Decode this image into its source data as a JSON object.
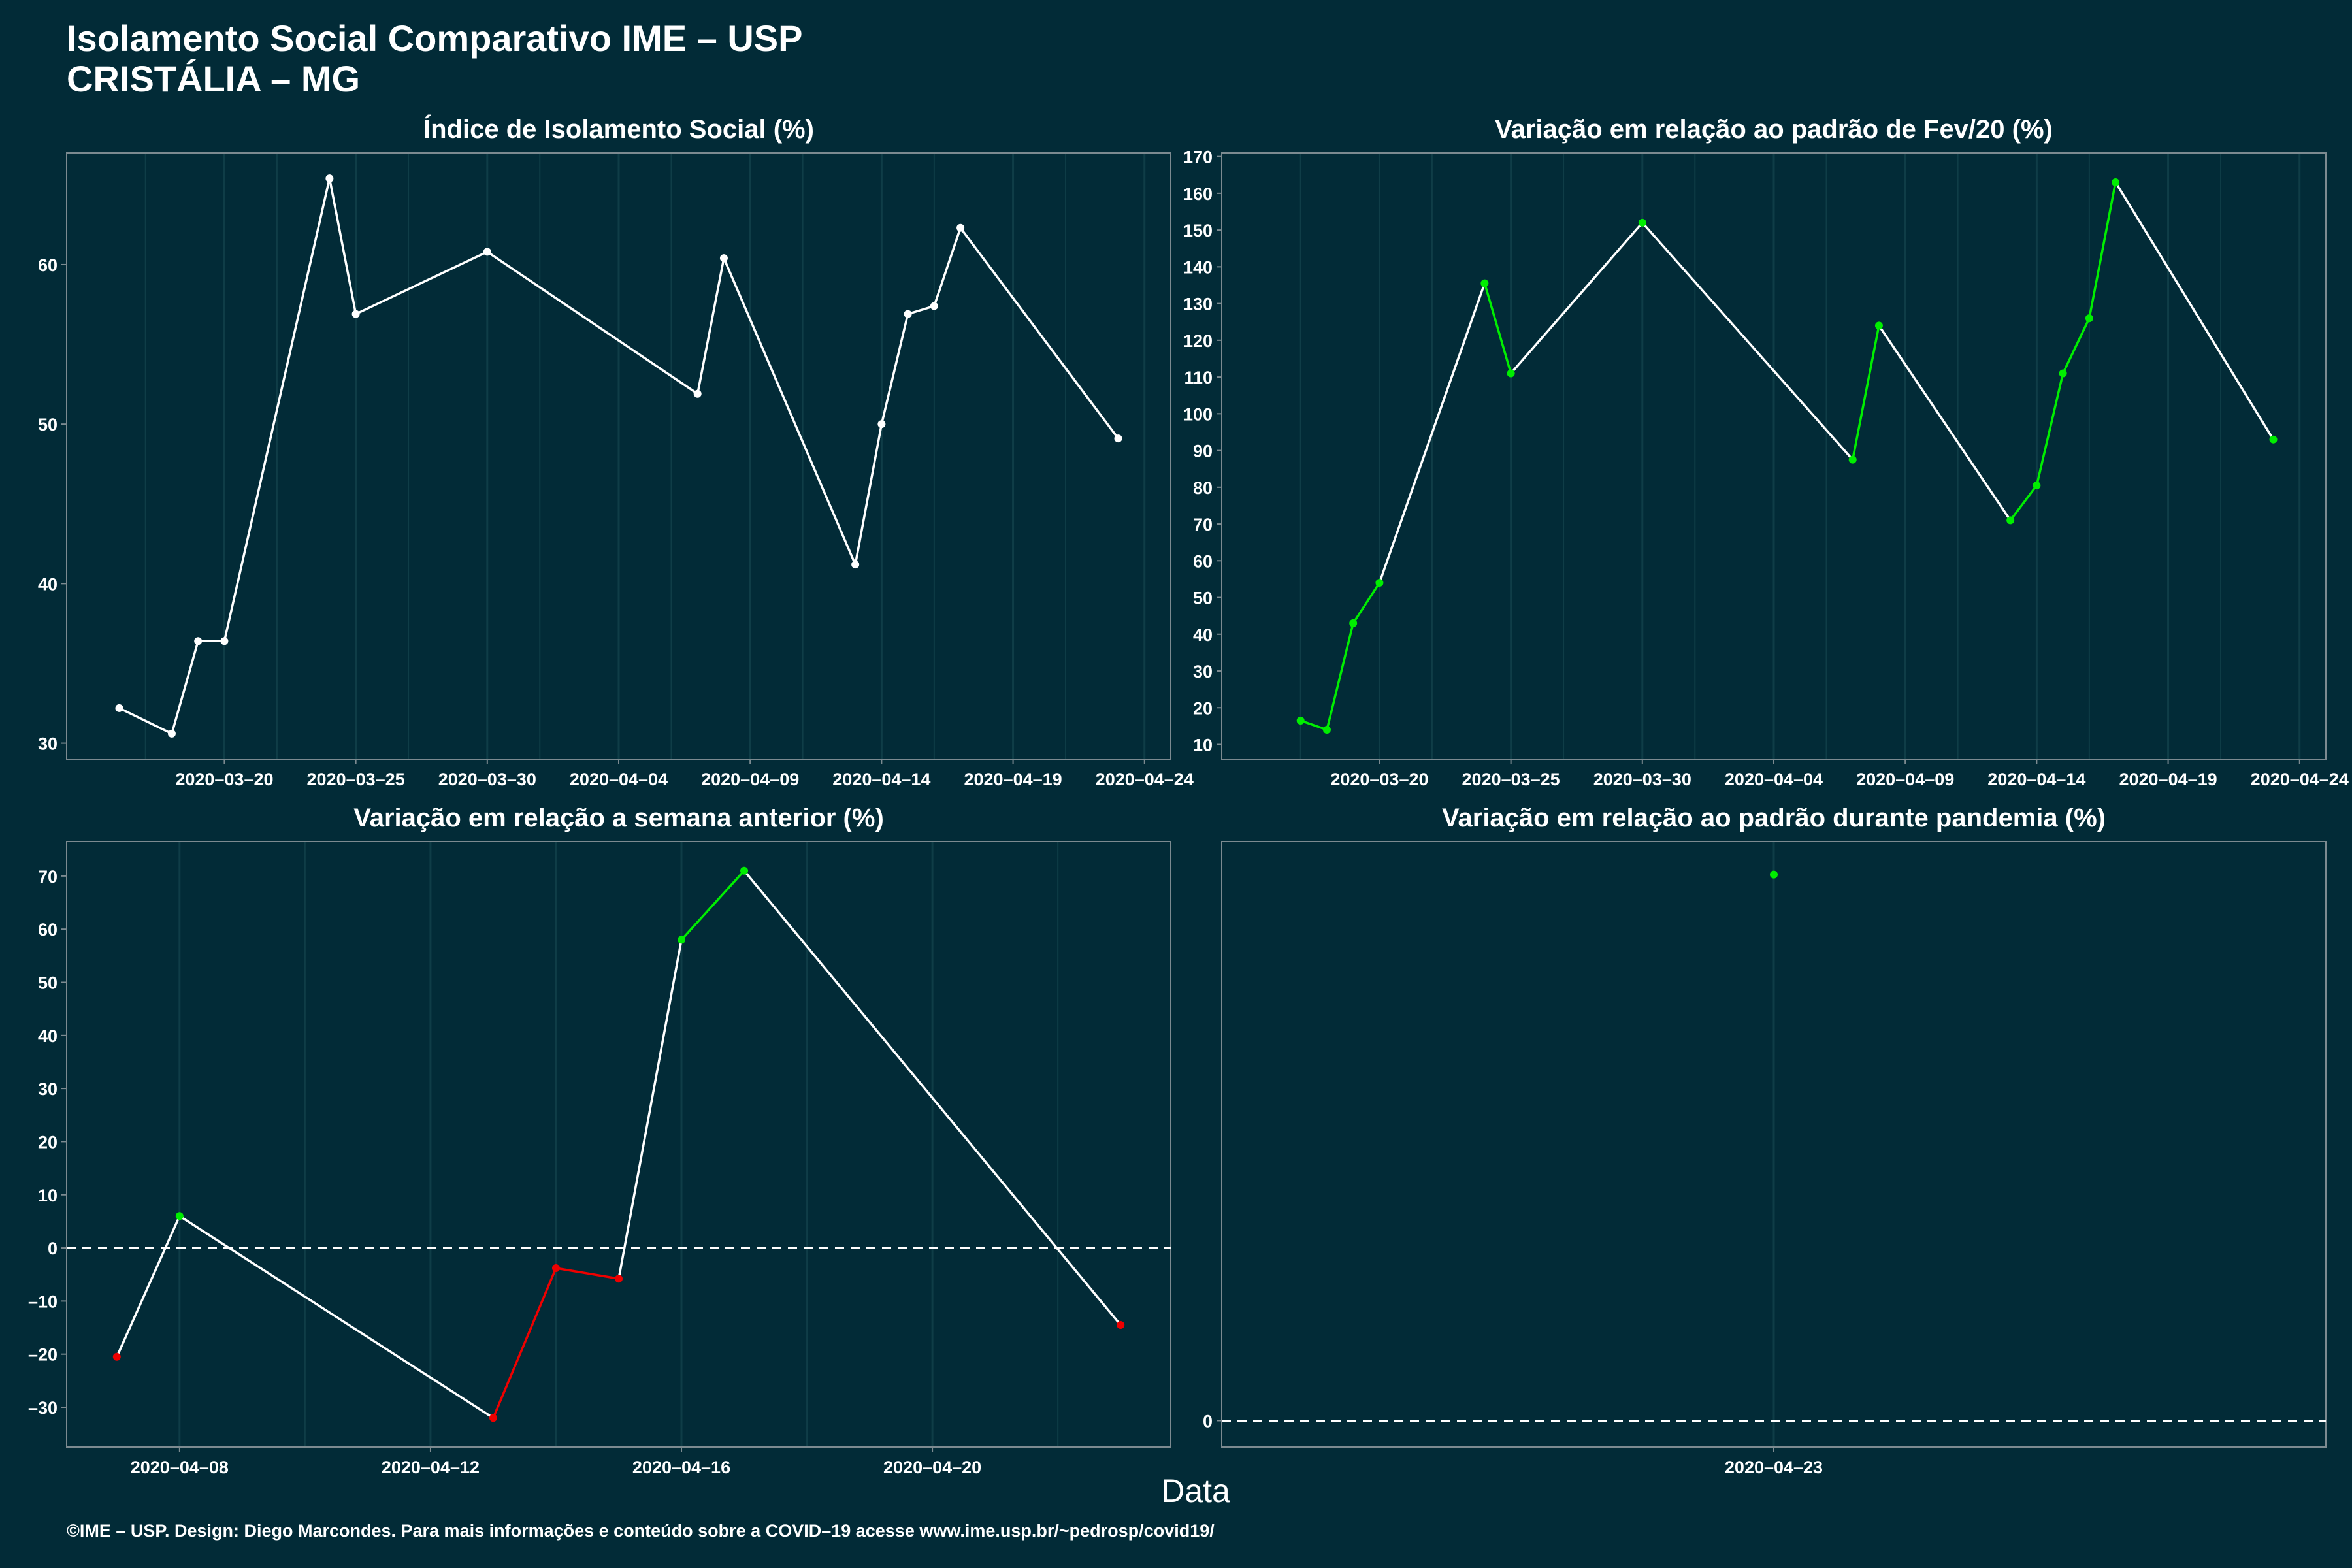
{
  "title": {
    "line1": "Isolamento Social Comparativo IME – USP",
    "line2": "CRISTÁLIA – MG"
  },
  "xlabel": "Data",
  "footer": "©IME – USP. Design: Diego Marcondes. Para mais informações e conteúdo sobre a COVID–19 acesse www.ime.usp.br/~pedrosp/covid19/",
  "colors": {
    "background": "#022b37",
    "line": "#ffffff",
    "up": "#00ee00",
    "down": "#ee0000",
    "grid": "#0f3d47",
    "frame": "#7c8a90"
  },
  "chart_data": [
    {
      "type": "line",
      "title": "Índice de Isolamento Social (%)",
      "x": [
        "2020-03-16",
        "2020-03-18",
        "2020-03-19",
        "2020-03-20",
        "2020-03-24",
        "2020-03-25",
        "2020-03-30",
        "2020-04-07",
        "2020-04-08",
        "2020-04-13",
        "2020-04-14",
        "2020-04-15",
        "2020-04-16",
        "2020-04-17",
        "2020-04-23"
      ],
      "values": [
        32.2,
        30.6,
        36.4,
        36.4,
        65.4,
        56.9,
        60.8,
        51.9,
        60.4,
        41.2,
        50.0,
        56.9,
        57.4,
        62.3,
        49.1
      ],
      "point_colors": [
        "white",
        "white",
        "white",
        "white",
        "white",
        "white",
        "white",
        "white",
        "white",
        "white",
        "white",
        "white",
        "white",
        "white",
        "white"
      ],
      "xlim": [
        "2020-03-14",
        "2020-04-25"
      ],
      "ylim": [
        29,
        67
      ],
      "yticks": [
        30,
        40,
        50,
        60
      ],
      "xticks": [
        "2020-03-20",
        "2020-03-25",
        "2020-03-30",
        "2020-04-04",
        "2020-04-09",
        "2020-04-14",
        "2020-04-19",
        "2020-04-24"
      ],
      "zero_line": false
    },
    {
      "type": "line",
      "title": "Variação em relação ao padrão de Fev/20 (%)",
      "x": [
        "2020-03-17",
        "2020-03-18",
        "2020-03-19",
        "2020-03-20",
        "2020-03-24",
        "2020-03-25",
        "2020-03-30",
        "2020-04-07",
        "2020-04-08",
        "2020-04-13",
        "2020-04-14",
        "2020-04-15",
        "2020-04-16",
        "2020-04-17",
        "2020-04-23"
      ],
      "values": [
        16.5,
        14.0,
        43.0,
        54.0,
        135.5,
        111.0,
        152.0,
        87.5,
        124.0,
        71.0,
        80.5,
        111.0,
        126.0,
        163.0,
        93.0
      ],
      "point_colors": [
        "green",
        "green",
        "green",
        "green",
        "green",
        "green",
        "green",
        "green",
        "green",
        "green",
        "green",
        "green",
        "green",
        "green",
        "green"
      ],
      "xlim": [
        "2020-03-14",
        "2020-04-25"
      ],
      "ylim": [
        6,
        171
      ],
      "yticks": [
        10,
        20,
        30,
        40,
        50,
        60,
        70,
        80,
        90,
        100,
        110,
        120,
        130,
        140,
        150,
        160,
        170
      ],
      "xticks": [
        "2020-03-20",
        "2020-03-25",
        "2020-03-30",
        "2020-04-04",
        "2020-04-09",
        "2020-04-14",
        "2020-04-19",
        "2020-04-24"
      ],
      "zero_line": false
    },
    {
      "type": "line",
      "title": "Variação em relação a semana anterior (%)",
      "x": [
        "2020-04-07",
        "2020-04-08",
        "2020-04-13",
        "2020-04-14",
        "2020-04-15",
        "2020-04-16",
        "2020-04-17",
        "2020-04-23"
      ],
      "values": [
        -20.5,
        6.0,
        -32.0,
        -3.8,
        -5.8,
        58.0,
        71.0,
        -14.5
      ],
      "point_colors": [
        "red",
        "green",
        "red",
        "red",
        "red",
        "green",
        "green",
        "red"
      ],
      "xlim": [
        "2020-04-06.2",
        "2020-04-23.8"
      ],
      "ylim": [
        -37.5,
        76.5
      ],
      "yticks": [
        -30,
        -20,
        -10,
        0,
        10,
        20,
        30,
        40,
        50,
        60,
        70
      ],
      "xticks": [
        "2020-04-08",
        "2020-04-12",
        "2020-04-16",
        "2020-04-20"
      ],
      "zero_line": true
    },
    {
      "type": "scatter",
      "title": "Variação em relação ao padrão durante pandemia (%)",
      "x": [
        "2020-04-23"
      ],
      "values": [
        16.5
      ],
      "point_colors": [
        "green"
      ],
      "ylim": [
        -0.8,
        17.5
      ],
      "yticks": [
        0
      ],
      "xticks": [
        "2020-04-23"
      ],
      "zero_line": true
    }
  ]
}
